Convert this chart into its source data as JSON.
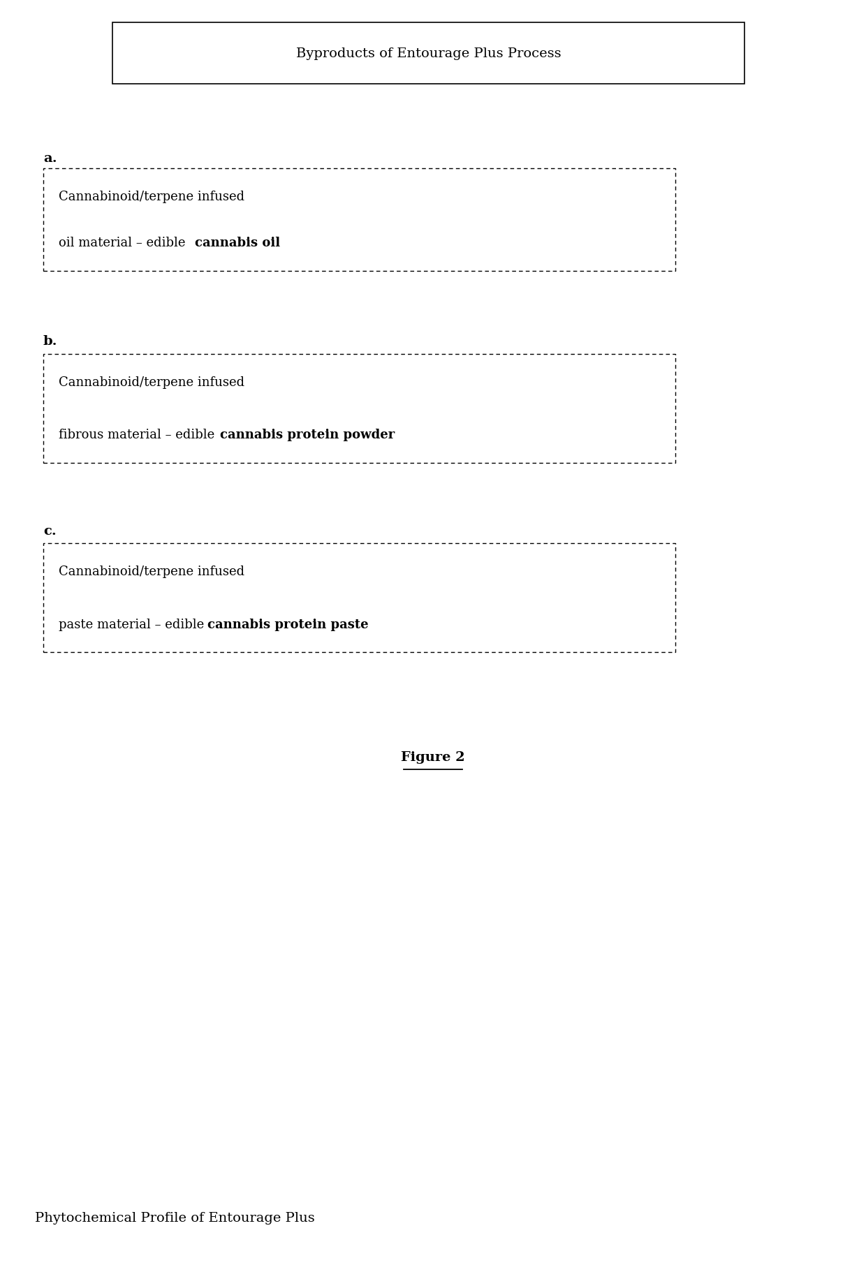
{
  "title_box_text": "Byproducts of Entourage Plus Process",
  "label_a": "a.",
  "label_b": "b.",
  "label_c": "c.",
  "box_a_line1": "Cannabinoid/terpene infused",
  "box_a_line2_normal": "oil material – edible ",
  "box_a_line2_bold": "cannabis oil",
  "box_b_line1": "Cannabinoid/terpene infused",
  "box_b_line2_normal": "fibrous material – edible ",
  "box_b_line2_bold": "cannabis protein powder",
  "box_c_line1": "Cannabinoid/terpene infused",
  "box_c_line2_normal": "paste material – edible ",
  "box_c_line2_bold": "cannabis protein paste",
  "figure_label": "Figure 2",
  "bottom_text": "Phytochemical Profile of Entourage Plus",
  "bg_color": "#ffffff",
  "text_color": "#000000"
}
